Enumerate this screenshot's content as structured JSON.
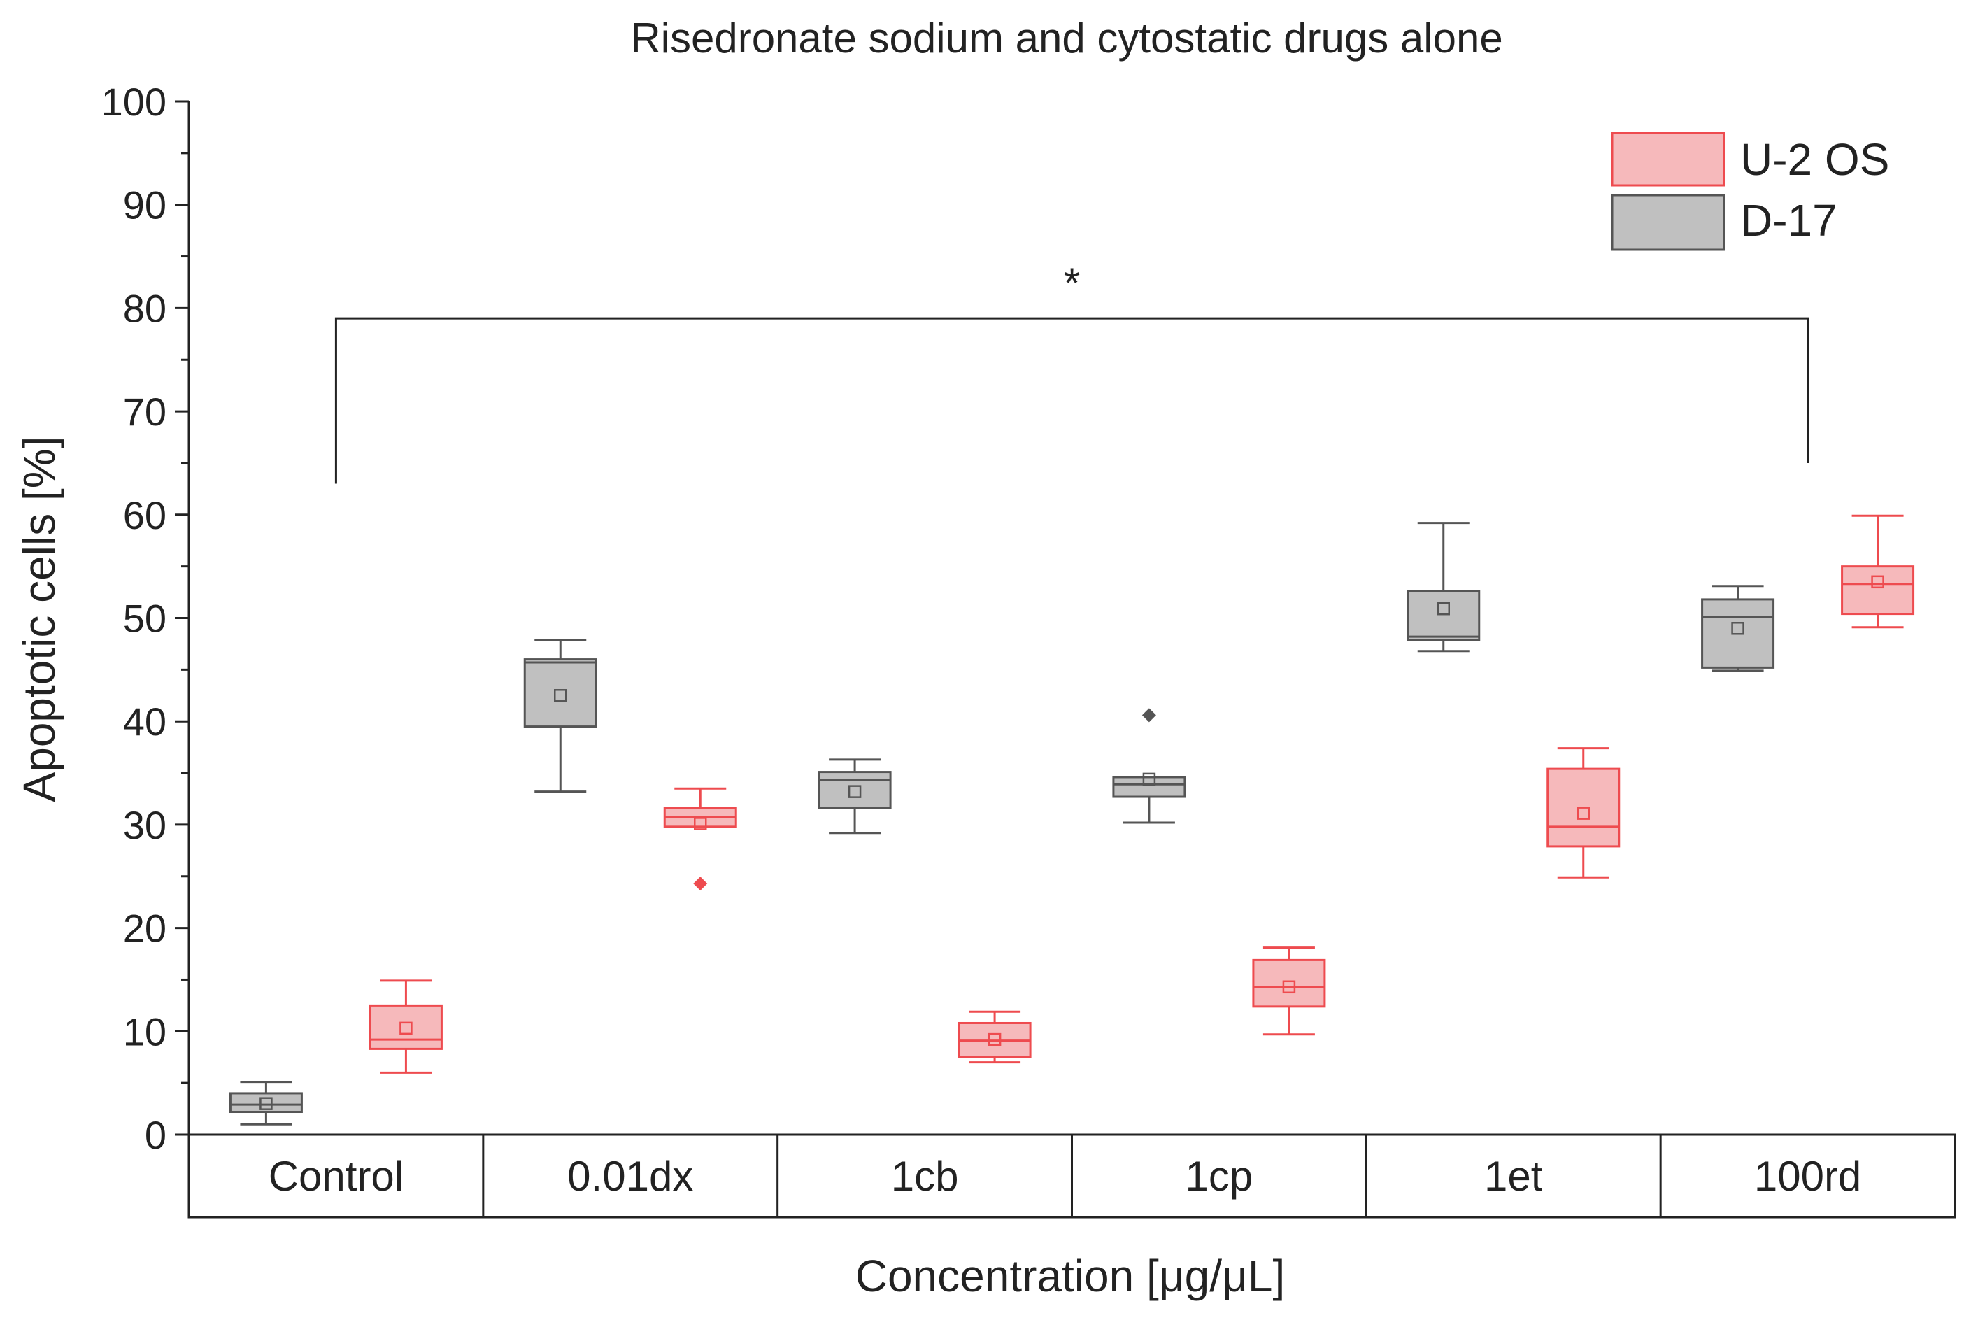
{
  "chart_data": {
    "type": "box",
    "title": "Risedronate sodium and cytostatic drugs alone",
    "xlabel": "Concentration [μg/μL]",
    "ylabel": "Apoptotic cells [%]",
    "ylim": [
      0,
      100
    ],
    "yticks": [
      "0",
      "10",
      "20",
      "30",
      "40",
      "50",
      "60",
      "70",
      "80",
      "90",
      "100"
    ],
    "categories": [
      "Control",
      "0.01dx",
      "1cb",
      "1cp",
      "1et",
      "100rd"
    ],
    "legend_position": "top-right",
    "significance": {
      "label": "*",
      "from_category": "Control",
      "to_category": "100rd",
      "bracket_level": 79
    },
    "series": [
      {
        "name": "D-17",
        "fill": "#c0c0c0",
        "stroke": "#555555",
        "boxes": [
          {
            "category": "Control",
            "min": 1.0,
            "q1": 2.2,
            "median": 2.9,
            "q3": 4.0,
            "max": 5.1,
            "mean": 3.0,
            "outliers": []
          },
          {
            "category": "0.01dx",
            "min": 33.2,
            "q1": 39.5,
            "median": 45.7,
            "q3": 46.0,
            "max": 47.9,
            "mean": 42.5,
            "outliers": []
          },
          {
            "category": "1cb",
            "min": 29.2,
            "q1": 31.6,
            "median": 34.3,
            "q3": 35.1,
            "max": 36.3,
            "mean": 33.2,
            "outliers": []
          },
          {
            "category": "1cp",
            "min": 30.2,
            "q1": 32.7,
            "median": 33.9,
            "q3": 34.6,
            "max": 34.6,
            "mean": 34.4,
            "outliers": [
              40.6
            ]
          },
          {
            "category": "1et",
            "min": 46.8,
            "q1": 47.9,
            "median": 48.2,
            "q3": 52.6,
            "max": 59.2,
            "mean": 50.9,
            "outliers": []
          },
          {
            "category": "100rd",
            "min": 44.9,
            "q1": 45.2,
            "median": 50.1,
            "q3": 51.8,
            "max": 53.1,
            "mean": 49.0,
            "outliers": []
          }
        ]
      },
      {
        "name": "U-2 OS",
        "fill": "#f6b9bb",
        "stroke": "#ee4b4f",
        "boxes": [
          {
            "category": "Control",
            "min": 6.0,
            "q1": 8.3,
            "median": 9.2,
            "q3": 12.5,
            "max": 14.9,
            "mean": 10.3,
            "outliers": []
          },
          {
            "category": "0.01dx",
            "min": 29.8,
            "q1": 29.8,
            "median": 30.7,
            "q3": 31.6,
            "max": 33.5,
            "mean": 30.1,
            "outliers": [
              24.3
            ]
          },
          {
            "category": "1cb",
            "min": 7.0,
            "q1": 7.5,
            "median": 9.1,
            "q3": 10.8,
            "max": 11.9,
            "mean": 9.2,
            "outliers": []
          },
          {
            "category": "1cp",
            "min": 9.7,
            "q1": 12.4,
            "median": 14.3,
            "q3": 16.9,
            "max": 18.1,
            "mean": 14.3,
            "outliers": []
          },
          {
            "category": "1et",
            "min": 24.9,
            "q1": 27.9,
            "median": 29.8,
            "q3": 35.4,
            "max": 37.4,
            "mean": 31.1,
            "outliers": []
          },
          {
            "category": "100rd",
            "min": 49.1,
            "q1": 50.4,
            "median": 53.3,
            "q3": 55.0,
            "max": 59.9,
            "mean": 53.5,
            "outliers": []
          }
        ]
      }
    ]
  }
}
